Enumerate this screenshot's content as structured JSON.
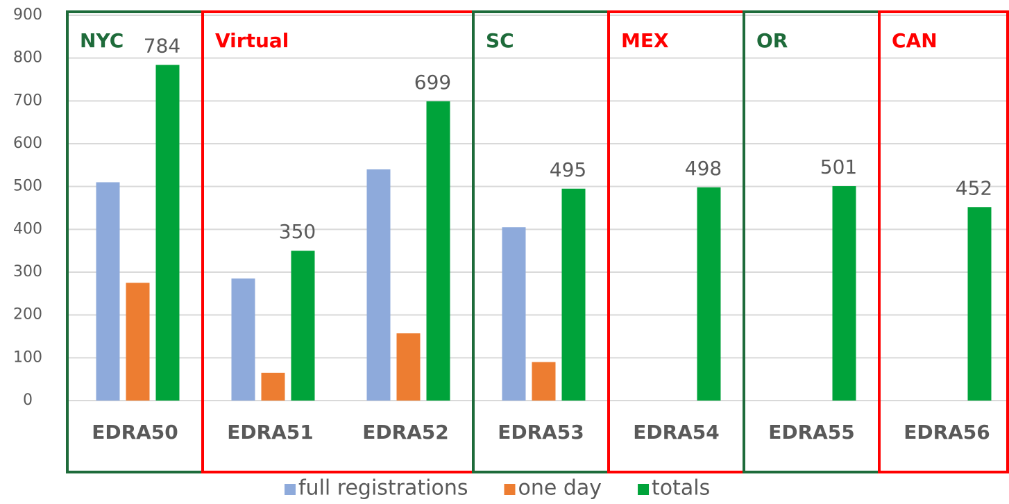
{
  "chart_data": {
    "type": "bar",
    "categories": [
      "EDRA50",
      "EDRA51",
      "EDRA52",
      "EDRA53",
      "EDRA54",
      "EDRA55",
      "EDRA56"
    ],
    "series": [
      {
        "name": "full registrations",
        "color": "#8eaadb",
        "values": [
          510,
          285,
          540,
          405,
          null,
          null,
          null
        ]
      },
      {
        "name": "one day",
        "color": "#ed7d31",
        "values": [
          275,
          65,
          157,
          90,
          null,
          null,
          null
        ]
      },
      {
        "name": "totals",
        "color": "#00a33a",
        "values": [
          784,
          350,
          699,
          495,
          498,
          501,
          452
        ],
        "show_value_labels": true
      }
    ],
    "ylim": [
      0,
      900
    ],
    "yticks": [
      0,
      100,
      200,
      300,
      400,
      500,
      600,
      700,
      800,
      900
    ],
    "grid": true,
    "regions": [
      {
        "label": "NYC",
        "color": "#1e6b3a",
        "span": [
          0,
          0
        ]
      },
      {
        "label": "Virtual",
        "color": "#ff0000",
        "span": [
          1,
          2
        ]
      },
      {
        "label": "SC",
        "color": "#1e6b3a",
        "span": [
          3,
          3
        ]
      },
      {
        "label": "MEX",
        "color": "#ff0000",
        "span": [
          4,
          4
        ]
      },
      {
        "label": "OR",
        "color": "#1e6b3a",
        "span": [
          5,
          5
        ]
      },
      {
        "label": "CAN",
        "color": "#ff0000",
        "span": [
          6,
          6
        ]
      }
    ],
    "legend": "bottom"
  }
}
